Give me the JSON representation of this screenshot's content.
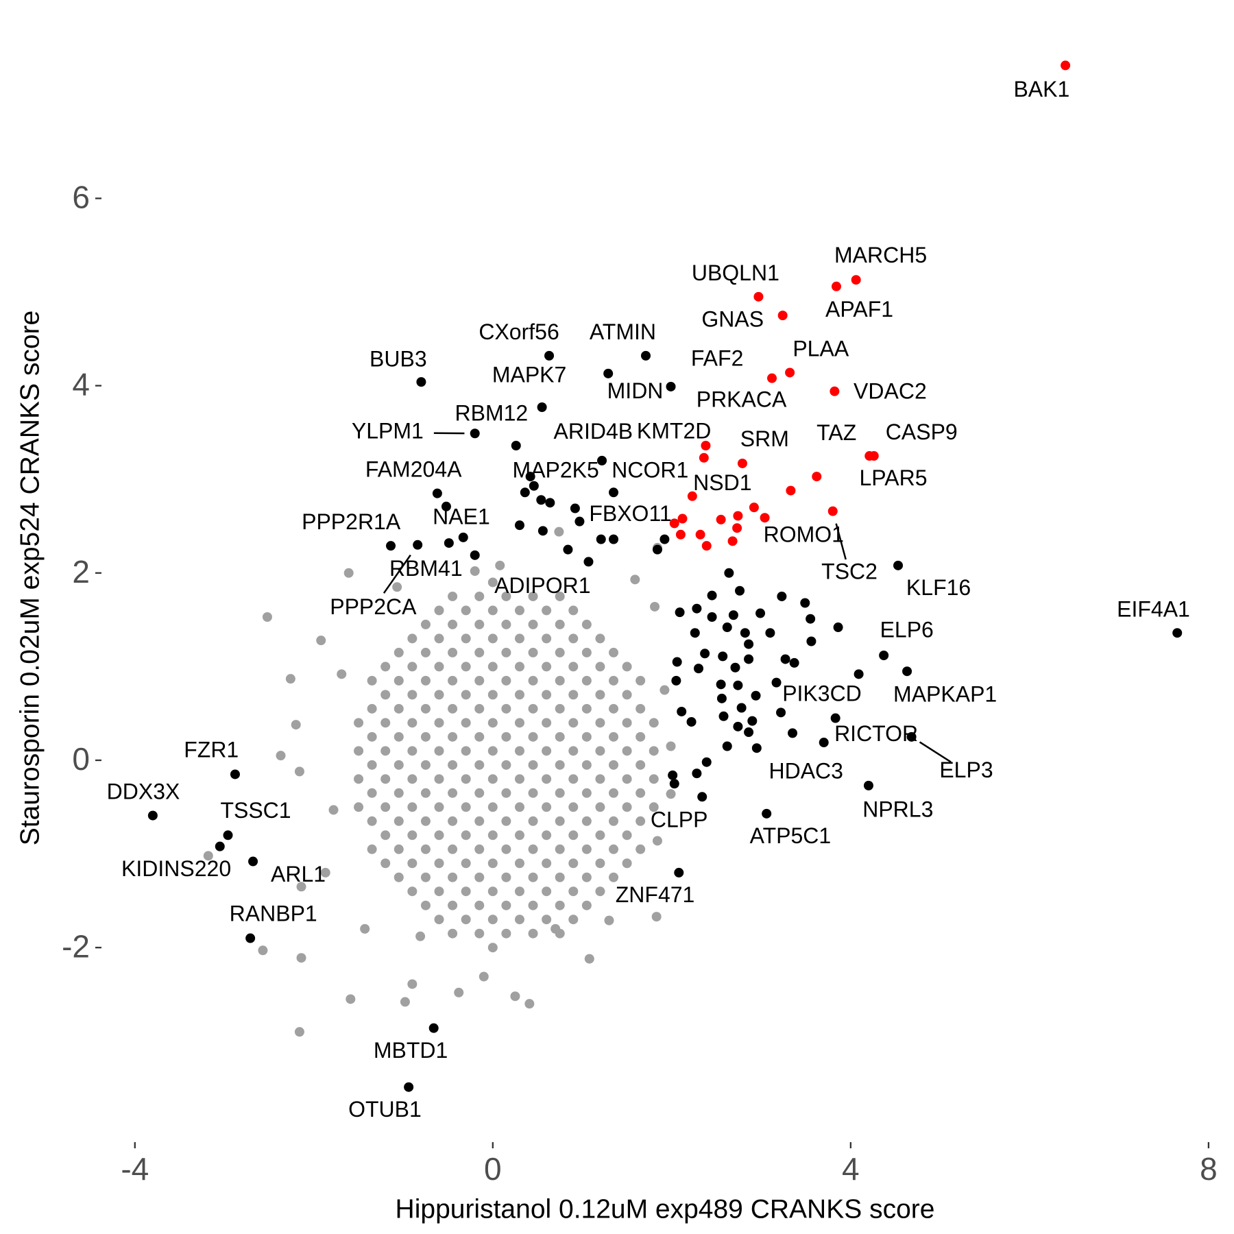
{
  "chart_data": {
    "type": "scatter",
    "x_label": "Hippuristanol 0.12uM exp489 CRANKS score",
    "y_label": "Staurosporin 0.02uM exp524 CRANKS score",
    "xlim": [
      -4.35,
      8.2
    ],
    "ylim": [
      -4,
      7.8
    ],
    "xticks": [
      -4,
      0,
      4,
      8
    ],
    "yticks": [
      -2,
      0,
      2,
      4,
      6
    ],
    "series": [
      {
        "color": "#a0a0a0",
        "x": [
          0,
          -0.45,
          -0.15,
          0.15,
          0.45,
          0.75,
          -0.6,
          -0.3,
          0,
          0.3,
          0.6,
          0.9,
          -0.75,
          -0.45,
          -0.15,
          0.15,
          0.45,
          0.75,
          1.05,
          -0.9,
          -0.6,
          -0.3,
          0,
          0.3,
          0.6,
          0.9,
          1.2,
          -1.05,
          -0.75,
          -0.45,
          -0.15,
          0.15,
          0.45,
          0.75,
          1.05,
          1.35,
          -1.2,
          -0.9,
          -0.6,
          -0.3,
          0,
          0.3,
          0.6,
          0.9,
          1.2,
          1.5,
          -1.35,
          -1.05,
          -0.75,
          -0.45,
          -0.15,
          0.15,
          0.45,
          0.75,
          1.05,
          1.35,
          1.65,
          -1.2,
          -0.9,
          -0.6,
          -0.3,
          0,
          0.3,
          0.6,
          0.9,
          1.2,
          1.5,
          -1.35,
          -1.05,
          -0.75,
          -0.45,
          -0.15,
          0.15,
          0.45,
          0.75,
          1.05,
          1.35,
          1.65,
          -1.5,
          -1.2,
          -0.9,
          -0.6,
          -0.3,
          0,
          0.3,
          0.6,
          0.9,
          1.2,
          1.5,
          1.8,
          -1.35,
          -1.05,
          -0.75,
          -0.45,
          -0.15,
          0.15,
          0.45,
          0.75,
          1.05,
          1.35,
          1.65,
          -1.5,
          -1.2,
          -0.9,
          -0.6,
          -0.3,
          0,
          0.3,
          0.6,
          0.9,
          1.2,
          1.5,
          1.8,
          -1.35,
          -1.05,
          -0.75,
          -0.45,
          -0.15,
          0.15,
          0.45,
          0.75,
          1.05,
          1.35,
          1.65,
          -1.5,
          -1.2,
          -0.9,
          -0.6,
          -0.3,
          0,
          0.3,
          0.6,
          0.9,
          1.2,
          1.5,
          1.8,
          -1.35,
          -1.05,
          -0.75,
          -0.45,
          -0.15,
          0.15,
          0.45,
          0.75,
          1.05,
          1.35,
          1.65,
          -1.5,
          -1.2,
          -0.9,
          -0.6,
          -0.3,
          0,
          0.3,
          0.6,
          0.9,
          1.2,
          1.5,
          1.8,
          -1.35,
          -1.05,
          -0.75,
          -0.45,
          -0.15,
          0.15,
          0.45,
          0.75,
          1.05,
          1.35,
          1.65,
          -1.2,
          -0.9,
          -0.6,
          -0.3,
          0,
          0.3,
          0.6,
          0.9,
          1.2,
          1.5,
          -1.35,
          -1.05,
          -0.75,
          -0.45,
          -0.15,
          0.15,
          0.45,
          0.75,
          1.05,
          1.35,
          1.65,
          -1.2,
          -0.9,
          -0.6,
          -0.3,
          0,
          0.3,
          0.6,
          0.9,
          1.2,
          1.5,
          -1.05,
          -0.75,
          -0.45,
          -0.15,
          0.15,
          0.45,
          0.75,
          1.05,
          1.35,
          -0.9,
          -0.6,
          -0.3,
          0,
          0.3,
          0.6,
          0.9,
          1.2,
          -0.75,
          -0.45,
          -0.15,
          0.15,
          0.45,
          0.75,
          1.05,
          -0.6,
          -0.3,
          0,
          0.3,
          0.6,
          0.9,
          -0.45,
          -0.15,
          0.15,
          0.45,
          0.75,
          0,
          -2.52,
          -1.92,
          -2.26,
          -2.2,
          -2.37,
          -2.16,
          -3.18,
          -2.14,
          -2.57,
          -2.14,
          -2.16,
          -1.59,
          -0.98,
          -0.38,
          0.25,
          0.41,
          1.08,
          1.83,
          1.3,
          -1.61,
          -1.07,
          -0.2,
          0.08,
          0.74,
          1.59,
          1.81,
          1.84,
          1.92,
          1.99,
          1.99,
          1.84,
          -1.78,
          -1.87,
          -1.69,
          -1.43,
          -0.81,
          0.7,
          -0.9,
          -0.1
        ],
        "y": [
          1.9,
          1.75,
          1.75,
          1.75,
          1.75,
          1.75,
          1.6,
          1.6,
          1.6,
          1.6,
          1.6,
          1.6,
          1.45,
          1.45,
          1.45,
          1.45,
          1.45,
          1.45,
          1.45,
          1.3,
          1.3,
          1.3,
          1.3,
          1.3,
          1.3,
          1.3,
          1.3,
          1.15,
          1.15,
          1.15,
          1.15,
          1.15,
          1.15,
          1.15,
          1.15,
          1.15,
          1,
          1,
          1,
          1,
          1,
          1,
          1,
          1,
          1,
          1,
          0.85,
          0.85,
          0.85,
          0.85,
          0.85,
          0.85,
          0.85,
          0.85,
          0.85,
          0.85,
          0.85,
          0.7,
          0.7,
          0.7,
          0.7,
          0.7,
          0.7,
          0.7,
          0.7,
          0.7,
          0.7,
          0.55,
          0.55,
          0.55,
          0.55,
          0.55,
          0.55,
          0.55,
          0.55,
          0.55,
          0.55,
          0.55,
          0.4,
          0.4,
          0.4,
          0.4,
          0.4,
          0.4,
          0.4,
          0.4,
          0.4,
          0.4,
          0.4,
          0.4,
          0.25,
          0.25,
          0.25,
          0.25,
          0.25,
          0.25,
          0.25,
          0.25,
          0.25,
          0.25,
          0.25,
          0.1,
          0.1,
          0.1,
          0.1,
          0.1,
          0.1,
          0.1,
          0.1,
          0.1,
          0.1,
          0.1,
          0.1,
          -0.05,
          -0.05,
          -0.05,
          -0.05,
          -0.05,
          -0.05,
          -0.05,
          -0.05,
          -0.05,
          -0.05,
          -0.05,
          -0.2,
          -0.2,
          -0.2,
          -0.2,
          -0.2,
          -0.2,
          -0.2,
          -0.2,
          -0.2,
          -0.2,
          -0.2,
          -0.2,
          -0.35,
          -0.35,
          -0.35,
          -0.35,
          -0.35,
          -0.35,
          -0.35,
          -0.35,
          -0.35,
          -0.35,
          -0.35,
          -0.5,
          -0.5,
          -0.5,
          -0.5,
          -0.5,
          -0.5,
          -0.5,
          -0.5,
          -0.5,
          -0.5,
          -0.5,
          -0.5,
          -0.65,
          -0.65,
          -0.65,
          -0.65,
          -0.65,
          -0.65,
          -0.65,
          -0.65,
          -0.65,
          -0.65,
          -0.65,
          -0.8,
          -0.8,
          -0.8,
          -0.8,
          -0.8,
          -0.8,
          -0.8,
          -0.8,
          -0.8,
          -0.8,
          -0.95,
          -0.95,
          -0.95,
          -0.95,
          -0.95,
          -0.95,
          -0.95,
          -0.95,
          -0.95,
          -0.95,
          -0.95,
          -1.1,
          -1.1,
          -1.1,
          -1.1,
          -1.1,
          -1.1,
          -1.1,
          -1.1,
          -1.1,
          -1.1,
          -1.25,
          -1.25,
          -1.25,
          -1.25,
          -1.25,
          -1.25,
          -1.25,
          -1.25,
          -1.25,
          -1.4,
          -1.4,
          -1.4,
          -1.4,
          -1.4,
          -1.4,
          -1.4,
          -1.4,
          -1.55,
          -1.55,
          -1.55,
          -1.55,
          -1.55,
          -1.55,
          -1.55,
          -1.7,
          -1.7,
          -1.7,
          -1.7,
          -1.7,
          -1.7,
          -1.85,
          -1.85,
          -1.85,
          -1.85,
          -1.85,
          -2,
          1.53,
          1.28,
          0.87,
          0.38,
          0.05,
          -0.12,
          -1.02,
          -1.35,
          -2.03,
          -2.11,
          -2.9,
          -2.55,
          -2.58,
          -2.48,
          -2.52,
          -2.6,
          -2.12,
          -1.67,
          -1.71,
          2,
          1.85,
          2.02,
          2.08,
          2.44,
          1.93,
          1.64,
          2.27,
          0.75,
          0.15,
          -0.36,
          -0.86,
          -0.53,
          -1.2,
          0.92,
          -1.8,
          -1.88,
          -1.8,
          -2.39,
          -2.31
        ]
      },
      {
        "color": "#000000",
        "x": [
          7.65,
          4.53,
          4.37,
          4.63,
          3.83,
          3.7,
          4.68,
          3.35,
          4.2,
          3.06,
          2.34,
          2.08,
          -2.88,
          -3.8,
          -2.96,
          -3.05,
          -2.68,
          -2.71,
          -0.66,
          -0.94,
          -0.8,
          0.63,
          1.71,
          1.29,
          1.99,
          0.55,
          -0.2,
          0.26,
          1.22,
          1.35,
          0.42,
          -0.62,
          -0.52,
          -1.14,
          -0.84,
          -0.49,
          0.97,
          1.07,
          2.64,
          2.76,
          3.23,
          3.49,
          3.55,
          2.99,
          2.45,
          2.28,
          2.09,
          2.26,
          2.45,
          2.62,
          2.69,
          2.82,
          3.1,
          3.56,
          2.06,
          2.37,
          2.57,
          2.86,
          2.86,
          3.27,
          3.37,
          2.05,
          2.3,
          2.55,
          2.71,
          2.74,
          3.17,
          2.94,
          2.56,
          2.78,
          2.11,
          2.22,
          2.58,
          2.74,
          2.9,
          3.22,
          2.62,
          2.86,
          2.95,
          2.39,
          2.28,
          2.01,
          2.03,
          1.92,
          1.84,
          4.09,
          3.86,
          -0.2,
          0.3,
          0.56,
          0.84,
          0.54,
          0.64,
          0.36,
          0.92,
          1.21,
          1.35,
          0.46,
          -0.33
        ],
        "y": [
          1.36,
          2.08,
          1.12,
          0.95,
          0.45,
          0.19,
          0.25,
          0.29,
          -0.27,
          -0.57,
          -0.39,
          -1.2,
          -0.15,
          -0.59,
          -0.8,
          -0.92,
          -1.08,
          -1.9,
          -2.86,
          -3.49,
          4.04,
          4.32,
          4.32,
          4.13,
          3.99,
          3.77,
          3.49,
          3.36,
          3.2,
          2.86,
          3.03,
          2.85,
          2.71,
          2.29,
          2.3,
          2.32,
          2.55,
          2.12,
          2,
          1.81,
          1.75,
          1.68,
          1.51,
          1.57,
          1.76,
          1.62,
          1.58,
          1.36,
          1.53,
          1.42,
          1.55,
          1.36,
          1.36,
          1.27,
          1.05,
          1.14,
          1.11,
          1.24,
          1.08,
          1.08,
          1.04,
          0.85,
          0.98,
          0.81,
          0.99,
          0.8,
          0.83,
          0.69,
          0.66,
          0.56,
          0.52,
          0.41,
          0.47,
          0.36,
          0.42,
          0.51,
          0.15,
          0.3,
          0.13,
          -0.02,
          -0.14,
          -0.16,
          -0.25,
          2.36,
          2.25,
          0.92,
          1.42,
          2.19,
          2.51,
          2.45,
          2.25,
          2.78,
          2.75,
          2.86,
          2.69,
          2.36,
          2.36,
          2.93,
          2.38
        ],
        "labels": [
          "EIF4A1",
          "KLF16",
          "ELP6",
          "MAPKAP1",
          "PIK3CD",
          "RICTOR",
          "ELP3",
          "HDAC3",
          "NPRL3",
          "ATP5C1",
          "CLPP",
          "ZNF471",
          "FZR1",
          "DDX3X",
          "TSSC1",
          "KIDINS220",
          "ARL1",
          "RANBP1",
          "MBTD1",
          "OTUB1",
          "BUB3",
          "CXorf56",
          "ATMIN",
          "MIDN",
          "KMT2D",
          "MAPK7",
          "YLPM1",
          "RBM12",
          "ARID4B",
          "NCOR1",
          "MAP2K5",
          "FAM204A",
          "NAE1",
          "PPP2R1A",
          "PPP2CA",
          "RBM41",
          "FBXO11",
          "ADIPOR1",
          null,
          null,
          null,
          null,
          null,
          null,
          null,
          null,
          null,
          null,
          null,
          null,
          null,
          null,
          null,
          null,
          null,
          null,
          null,
          null,
          null,
          null,
          null,
          null,
          null,
          null,
          null,
          null,
          null,
          null,
          null,
          null,
          null,
          null,
          null,
          null,
          null,
          null,
          null,
          null,
          null,
          null,
          null,
          null,
          null,
          null,
          null,
          null,
          null,
          null,
          null,
          null,
          null,
          null,
          null,
          null,
          null,
          null,
          null,
          null,
          null
        ]
      },
      {
        "color": "#ff0000",
        "x": [
          6.4,
          4.06,
          3.84,
          2.97,
          3.24,
          3.32,
          3.12,
          3.82,
          2.38,
          2.79,
          3.62,
          4.26,
          4.21,
          2.23,
          3.04,
          3.8,
          2.36,
          3.33,
          2.92,
          2.74,
          2.73,
          2.55,
          2.68,
          2.39,
          2.32,
          2.12,
          2.03,
          2.1
        ],
        "y": [
          7.42,
          5.13,
          5.06,
          4.95,
          4.75,
          4.14,
          4.08,
          3.94,
          3.36,
          3.17,
          3.03,
          3.25,
          3.25,
          2.82,
          2.59,
          2.66,
          3.23,
          2.88,
          2.7,
          2.61,
          2.48,
          2.57,
          2.34,
          2.29,
          2.41,
          2.58,
          2.53,
          2.41
        ],
        "labels": [
          "BAK1",
          "MARCH5",
          "APAF1",
          "UBQLN1",
          "GNAS",
          "PLAA",
          "FAF2",
          "VDAC2",
          "PRKACA",
          "SRM",
          "TAZ",
          "CASP9",
          "LPAR5",
          "NSD1",
          "ROMO1",
          "TSC2",
          null,
          null,
          null,
          null,
          null,
          null,
          null,
          null,
          null,
          null,
          null,
          null
        ]
      }
    ]
  }
}
